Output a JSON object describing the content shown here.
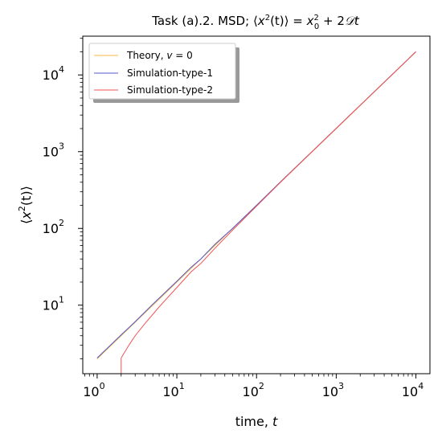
{
  "chart_data": {
    "type": "line",
    "title": "Task (a).2. MSD; ⟨x²(t)⟩ = x₀² + 2𝒟t",
    "title_parts": {
      "prefix": "Task (a).2. MSD; ",
      "bracket_open": "⟨",
      "var_x": "x",
      "sup_2": "2",
      "paren_t": "(t)",
      "bracket_close": "⟩",
      "equals": " = ",
      "x0": "x",
      "sub_0": "0",
      "x0_sup": "2",
      "plus_term": " + 2",
      "D": "𝒟",
      "t": "t"
    },
    "xlabel": "time, t",
    "xlabel_parts": {
      "text": "time, ",
      "var": "t"
    },
    "ylabel": "⟨x²(t)⟩",
    "x_scale": "log",
    "y_scale": "log",
    "xlim": [
      0.66,
      15000
    ],
    "ylim": [
      1.28,
      32000
    ],
    "x_ticks": [
      {
        "value": 1,
        "base": "10",
        "exp": "0"
      },
      {
        "value": 10,
        "base": "10",
        "exp": "1"
      },
      {
        "value": 100,
        "base": "10",
        "exp": "2"
      },
      {
        "value": 1000,
        "base": "10",
        "exp": "3"
      },
      {
        "value": 10000,
        "base": "10",
        "exp": "4"
      }
    ],
    "y_ticks": [
      {
        "value": 10,
        "base": "10",
        "exp": "1"
      },
      {
        "value": 100,
        "base": "10",
        "exp": "2"
      },
      {
        "value": 1000,
        "base": "10",
        "exp": "3"
      },
      {
        "value": 10000,
        "base": "10",
        "exp": "4"
      }
    ],
    "grid": false,
    "legend_position": "top-left",
    "series": [
      {
        "name": "Theory, v = 0",
        "name_parts": {
          "text": "Theory, ",
          "var": "v",
          "rest": " = 0"
        },
        "color": "#f5b942",
        "x": [
          1,
          2,
          5,
          10,
          20,
          50,
          100,
          200,
          500,
          1000,
          2000,
          5000,
          10000
        ],
        "y": [
          2,
          4,
          10,
          20,
          40,
          100,
          200,
          400,
          1000,
          2000,
          4000,
          10000,
          20000
        ]
      },
      {
        "name": "Simulation-type-1",
        "color": "#5555cc",
        "x": [
          1,
          2,
          3,
          5,
          10,
          15,
          20,
          30,
          50,
          100,
          200,
          500,
          1000,
          2000,
          5000,
          10000
        ],
        "y": [
          2.05,
          4.1,
          6.1,
          10.3,
          20.5,
          31,
          40,
          62,
          100,
          200,
          405,
          1010,
          2020,
          4030,
          10050,
          20100
        ]
      },
      {
        "name": "Simulation-type-2",
        "color": "#f05555",
        "x": [
          2,
          2,
          2.5,
          3,
          4,
          6,
          10,
          15,
          20,
          30,
          50,
          100,
          200,
          500,
          1000,
          2000,
          5000,
          10000
        ],
        "y": [
          1.28,
          2.05,
          3.0,
          4.0,
          5.8,
          9.5,
          17,
          27,
          35,
          55,
          95,
          195,
          400,
          1005,
          2010,
          4020,
          10040,
          20080
        ]
      }
    ]
  }
}
